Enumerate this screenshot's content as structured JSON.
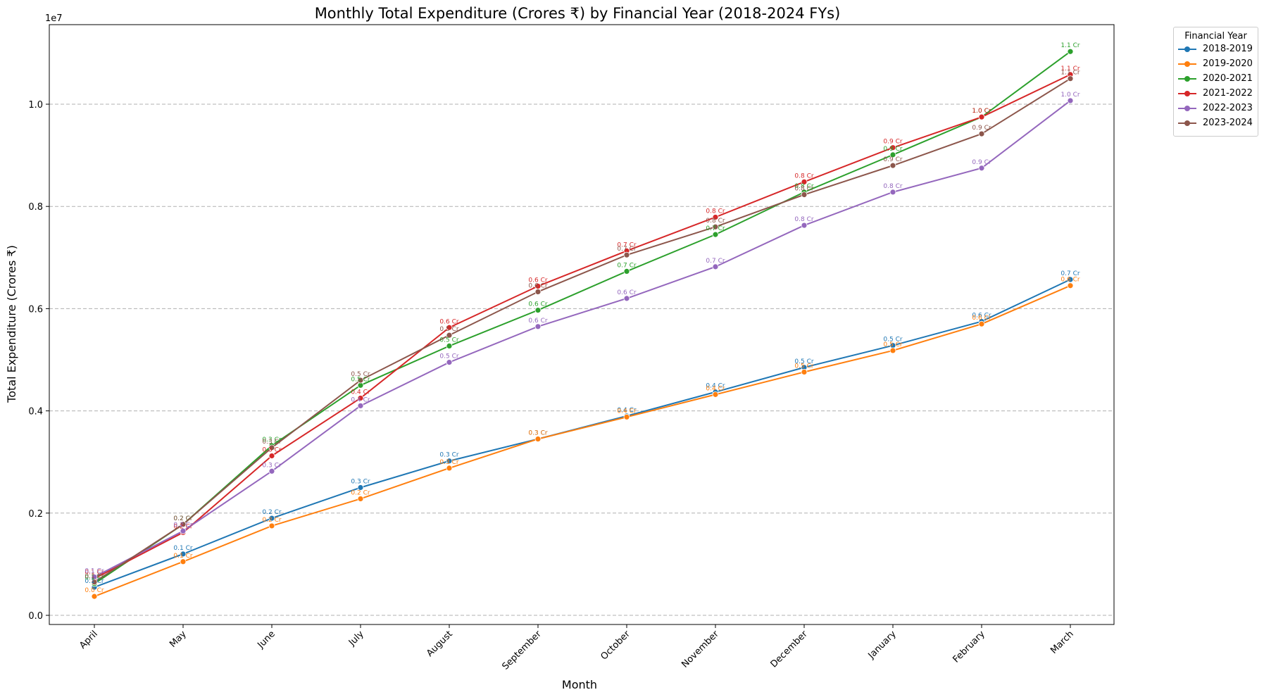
{
  "chart_data": {
    "type": "line",
    "title": "Monthly Total Expenditure (Crores ₹) by Financial Year (2018-2024 FYs)",
    "xlabel": "Month",
    "ylabel": "Total Expenditure (Crores ₹)",
    "y_offset_label": "1e7",
    "ylim": [
      0,
      1.12
    ],
    "yticks": [
      "0.0",
      "0.2",
      "0.4",
      "0.6",
      "0.8",
      "1.0"
    ],
    "grid": "horizontal dashed",
    "legend_title": "Financial Year",
    "legend_placement": "outside-top-right",
    "categories": [
      "April",
      "May",
      "June",
      "July",
      "August",
      "September",
      "October",
      "November",
      "December",
      "January",
      "February",
      "March"
    ],
    "series": [
      {
        "name": "2018-2019",
        "color": "#1f77b4",
        "values": [
          0.055,
          0.12,
          0.19,
          0.25,
          0.302,
          0.345,
          0.39,
          0.437,
          0.485,
          0.528,
          0.575,
          0.657
        ],
        "labels": [
          "0.1 Cr",
          "0.1 Cr",
          "0.2 Cr",
          "0.3 Cr",
          "0.3 Cr",
          "0.3 Cr",
          "0.4 Cr",
          "0.4 Cr",
          "0.5 Cr",
          "0.5 Cr",
          "0.6 Cr",
          "0.7 Cr"
        ]
      },
      {
        "name": "2019-2020",
        "color": "#ff7f0e",
        "values": [
          0.037,
          0.105,
          0.175,
          0.228,
          0.288,
          0.345,
          0.388,
          0.432,
          0.476,
          0.518,
          0.57,
          0.645
        ],
        "labels": [
          "0.0 Cr",
          "0.1 Cr",
          "0.2 Cr",
          "0.2 Cr",
          "0.3 Cr",
          "0.3 Cr",
          "0.4 Cr",
          "0.4 Cr",
          "0.5 Cr",
          "0.5 Cr",
          "0.6 Cr",
          "0.6 Cr"
        ]
      },
      {
        "name": "2020-2021",
        "color": "#2ca02c",
        "values": [
          0.062,
          0.178,
          0.332,
          0.45,
          0.527,
          0.597,
          0.673,
          0.745,
          0.828,
          0.901,
          0.975,
          1.103
        ],
        "labels": [
          "0.1 Cr",
          "0.2 Cr",
          "0.3 Cr",
          "0.5 Cr",
          "0.5 Cr",
          "0.6 Cr",
          "0.7 Cr",
          "0.7 Cr",
          "0.8 Cr",
          "0.9 Cr",
          "1.0 Cr",
          "1.1 Cr"
        ]
      },
      {
        "name": "2021-2022",
        "color": "#d62728",
        "values": [
          0.072,
          0.162,
          0.312,
          0.425,
          0.563,
          0.644,
          0.713,
          0.779,
          0.848,
          0.915,
          0.975,
          1.058
        ],
        "labels": [
          "0.1 Cr",
          "0.2 Cr",
          "0.3 Cr",
          "0.4 Cr",
          "0.6 Cr",
          "0.6 Cr",
          "0.7 Cr",
          "0.8 Cr",
          "0.8 Cr",
          "0.9 Cr",
          "1.0 Cr",
          "1.1 Cr"
        ]
      },
      {
        "name": "2022-2023",
        "color": "#9467bd",
        "values": [
          0.075,
          0.165,
          0.282,
          0.41,
          0.495,
          0.565,
          0.62,
          0.682,
          0.763,
          0.828,
          0.875,
          1.007
        ],
        "labels": [
          "0.1 Cr",
          "0.2 Cr",
          "0.3 Cr",
          "0.4 Cr",
          "0.5 Cr",
          "0.6 Cr",
          "0.6 Cr",
          "0.7 Cr",
          "0.8 Cr",
          "0.8 Cr",
          "0.9 Cr",
          "1.0 Cr"
        ]
      },
      {
        "name": "2023-2024",
        "color": "#8c564b",
        "values": [
          0.065,
          0.178,
          0.328,
          0.46,
          0.548,
          0.633,
          0.705,
          0.76,
          0.823,
          0.88,
          0.942,
          1.05
        ],
        "labels": [
          "0.1 Cr",
          "0.2 Cr",
          "0.3 Cr",
          "0.5 Cr",
          "0.5 Cr",
          "0.6 Cr",
          "0.7 Cr",
          "0.8 Cr",
          "0.8 Cr",
          "0.9 Cr",
          "0.9 Cr",
          "1.1 Cr"
        ]
      }
    ]
  }
}
